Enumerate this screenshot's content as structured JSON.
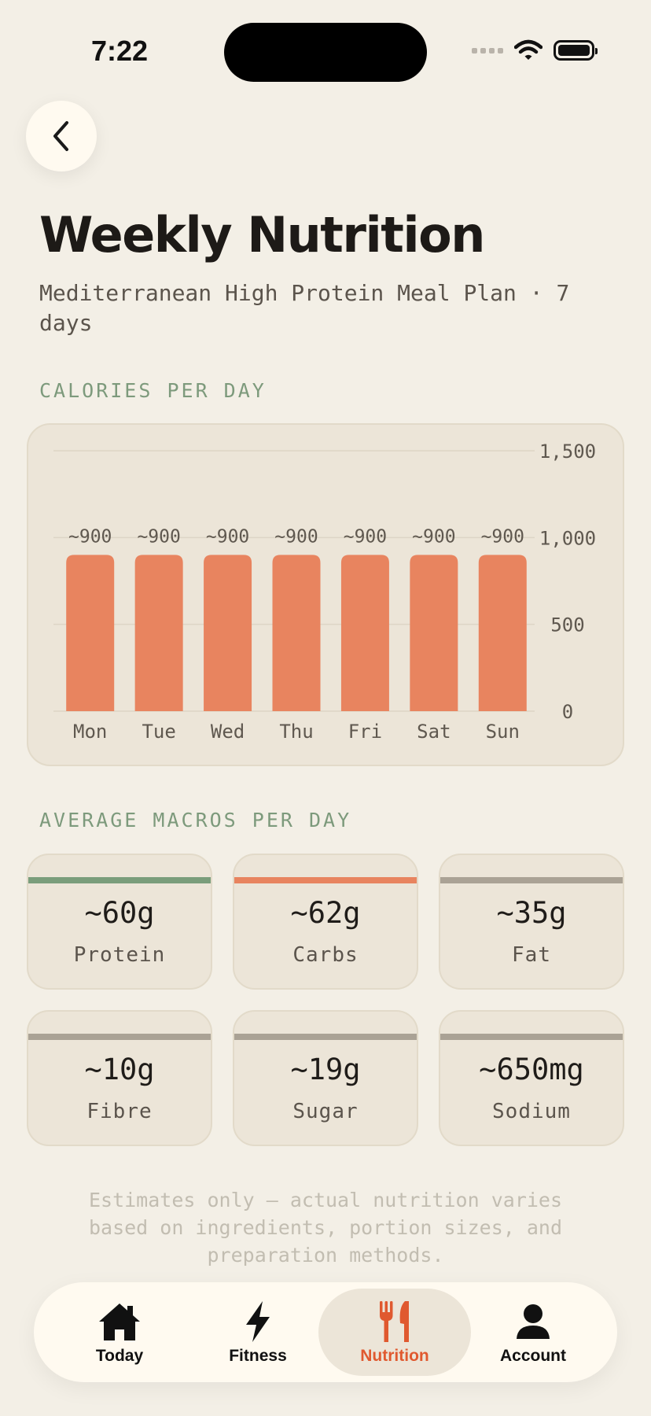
{
  "status_bar": {
    "time": "7:22"
  },
  "header": {
    "title": "Weekly Nutrition",
    "subtitle": "Mediterranean High Protein Meal Plan · 7 days"
  },
  "sections": {
    "calories": "CALORIES PER DAY",
    "macros": "AVERAGE MACROS PER DAY"
  },
  "chart_data": {
    "type": "bar",
    "title": "CALORIES PER DAY",
    "categories": [
      "Mon",
      "Tue",
      "Wed",
      "Thu",
      "Fri",
      "Sat",
      "Sun"
    ],
    "values": [
      900,
      900,
      900,
      900,
      900,
      900,
      900
    ],
    "data_labels": [
      "~900",
      "~900",
      "~900",
      "~900",
      "~900",
      "~900",
      "~900"
    ],
    "ylim": [
      0,
      1500
    ],
    "y_ticks": [
      0,
      500,
      1000,
      1500
    ],
    "y_tick_labels": [
      "0",
      "500",
      "1,000",
      "1,500"
    ],
    "y_axis_position": "right",
    "grid": true,
    "bar_color": "#e8845f"
  },
  "macros": [
    {
      "value": "~60g",
      "label": "Protein",
      "color": "#7a9d7b"
    },
    {
      "value": "~62g",
      "label": "Carbs",
      "color": "#e8845f"
    },
    {
      "value": "~35g",
      "label": "Fat",
      "color": "#aaa295"
    },
    {
      "value": "~10g",
      "label": "Fibre",
      "color": "#aaa295"
    },
    {
      "value": "~19g",
      "label": "Sugar",
      "color": "#aaa295"
    },
    {
      "value": "~650mg",
      "label": "Sodium",
      "color": "#aaa295"
    }
  ],
  "disclaimer": "Estimates only — actual nutrition varies based on ingredients, portion sizes, and preparation methods.",
  "tabs": [
    {
      "label": "Today",
      "icon": "home-icon"
    },
    {
      "label": "Fitness",
      "icon": "lightning-icon"
    },
    {
      "label": "Nutrition",
      "icon": "fork-knife-icon",
      "active": true
    },
    {
      "label": "Account",
      "icon": "person-icon"
    }
  ],
  "colors": {
    "accent": "#e0592f",
    "bar": "#e8845f",
    "protein": "#7a9d7b",
    "neutral": "#aaa295",
    "background": "#f3efe6"
  }
}
